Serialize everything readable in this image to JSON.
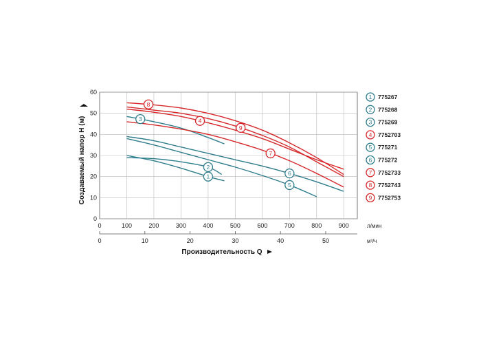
{
  "chart_data": {
    "type": "line",
    "ylabel": "Создаваемый напор H (м)",
    "xlabel": "Производительность Q",
    "y_axis": {
      "min": 0,
      "max": 60,
      "ticks": [
        "0",
        "10",
        "20",
        "30",
        "40",
        "50",
        "60"
      ]
    },
    "x_axis_lpm": {
      "unit": "л/мин",
      "min": 0,
      "max": 950,
      "ticks": [
        0,
        100,
        200,
        300,
        400,
        500,
        600,
        700,
        800,
        900
      ]
    },
    "x_axis_m3h": {
      "unit": "м³/ч",
      "ticks": [
        0,
        10,
        20,
        30,
        40,
        50
      ]
    },
    "grid": true,
    "legend_position": "right",
    "colors": {
      "teal": "#2e7d8c",
      "red": "#d6282b"
    },
    "series": [
      {
        "badge": "1",
        "name": "775267",
        "color": "teal",
        "label_x": 400,
        "x": [
          100,
          200,
          300,
          400,
          460
        ],
        "y": [
          30,
          27.5,
          24,
          20,
          18
        ]
      },
      {
        "badge": "2",
        "name": "775268",
        "color": "teal",
        "label_x": 400,
        "x": [
          100,
          200,
          300,
          400,
          450
        ],
        "y": [
          29,
          28.5,
          27,
          24.5,
          21
        ]
      },
      {
        "badge": "3",
        "name": "775269",
        "color": "teal",
        "label_x": 150,
        "x": [
          100,
          200,
          300,
          400,
          460
        ],
        "y": [
          48.5,
          46,
          43,
          38.5,
          35.5
        ]
      },
      {
        "badge": "4",
        "name": "7752703",
        "color": "red",
        "label_x": 370,
        "x": [
          100,
          200,
          300,
          400,
          500,
          600,
          700,
          800,
          900
        ],
        "y": [
          52,
          50.5,
          48.5,
          45.5,
          42,
          38,
          33,
          28,
          23.5
        ]
      },
      {
        "badge": "5",
        "name": "775271",
        "color": "teal",
        "label_x": 700,
        "x": [
          100,
          200,
          300,
          400,
          500,
          600,
          700,
          800
        ],
        "y": [
          38,
          35,
          31.5,
          28,
          24.5,
          20.5,
          16,
          10.5
        ]
      },
      {
        "badge": "6",
        "name": "775272",
        "color": "teal",
        "label_x": 700,
        "x": [
          100,
          200,
          300,
          400,
          500,
          600,
          700,
          800,
          900
        ],
        "y": [
          39,
          37,
          34,
          31,
          28,
          25,
          21.5,
          17.5,
          13
        ]
      },
      {
        "badge": "7",
        "name": "7752733",
        "color": "red",
        "label_x": 630,
        "x": [
          100,
          200,
          300,
          400,
          500,
          600,
          700,
          800,
          900
        ],
        "y": [
          46,
          44.5,
          42.5,
          40,
          36.5,
          32.5,
          27.5,
          21.5,
          15
        ]
      },
      {
        "badge": "8",
        "name": "7752743",
        "color": "red",
        "label_x": 180,
        "x": [
          100,
          200,
          300,
          400,
          500,
          600,
          700,
          800,
          900
        ],
        "y": [
          55,
          54,
          52.5,
          50,
          46.5,
          42,
          36,
          29,
          21
        ]
      },
      {
        "badge": "9",
        "name": "7752753",
        "color": "red",
        "label_x": 520,
        "x": [
          100,
          200,
          300,
          400,
          500,
          600,
          700,
          800,
          900
        ],
        "y": [
          53,
          51.5,
          50,
          47.5,
          44,
          39.5,
          34,
          27,
          20
        ]
      }
    ]
  }
}
